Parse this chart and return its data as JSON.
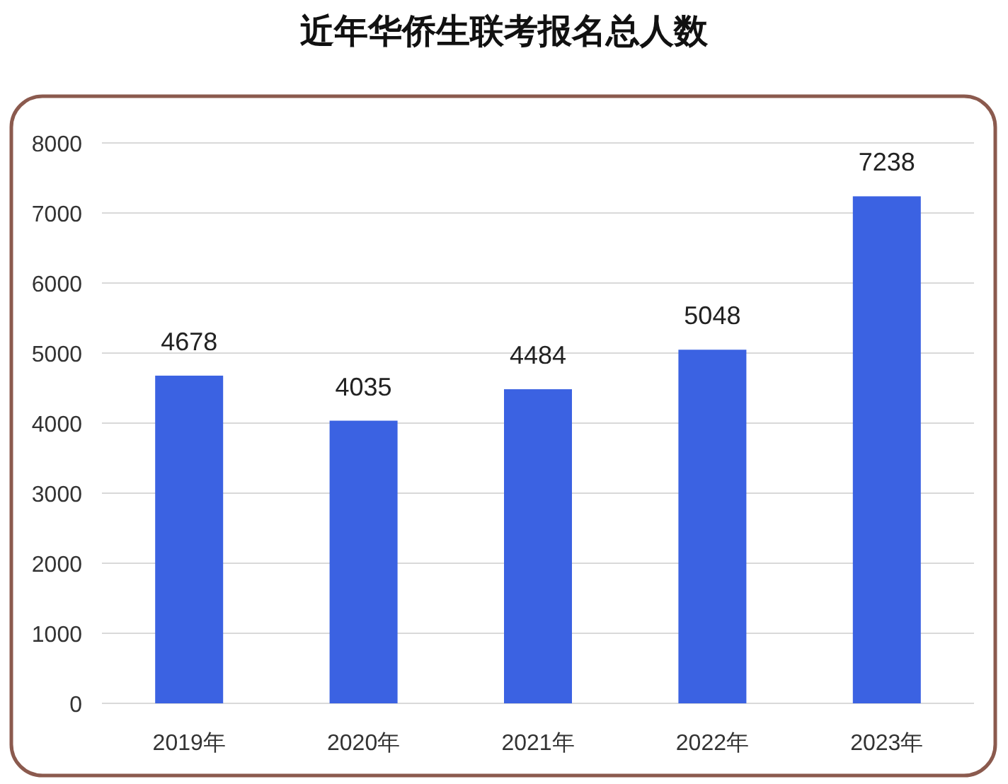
{
  "chart_data": {
    "type": "bar",
    "title": "近年华侨生联考报名总人数",
    "categories": [
      "2019年",
      "2020年",
      "2021年",
      "2022年",
      "2023年"
    ],
    "values": [
      4678,
      4035,
      4484,
      5048,
      7238
    ],
    "color": "#3b62e2",
    "ylim": [
      0,
      8000
    ],
    "yticks": [
      0,
      1000,
      2000,
      3000,
      4000,
      5000,
      6000,
      7000,
      8000
    ],
    "grid": "y",
    "data_labels": true
  }
}
